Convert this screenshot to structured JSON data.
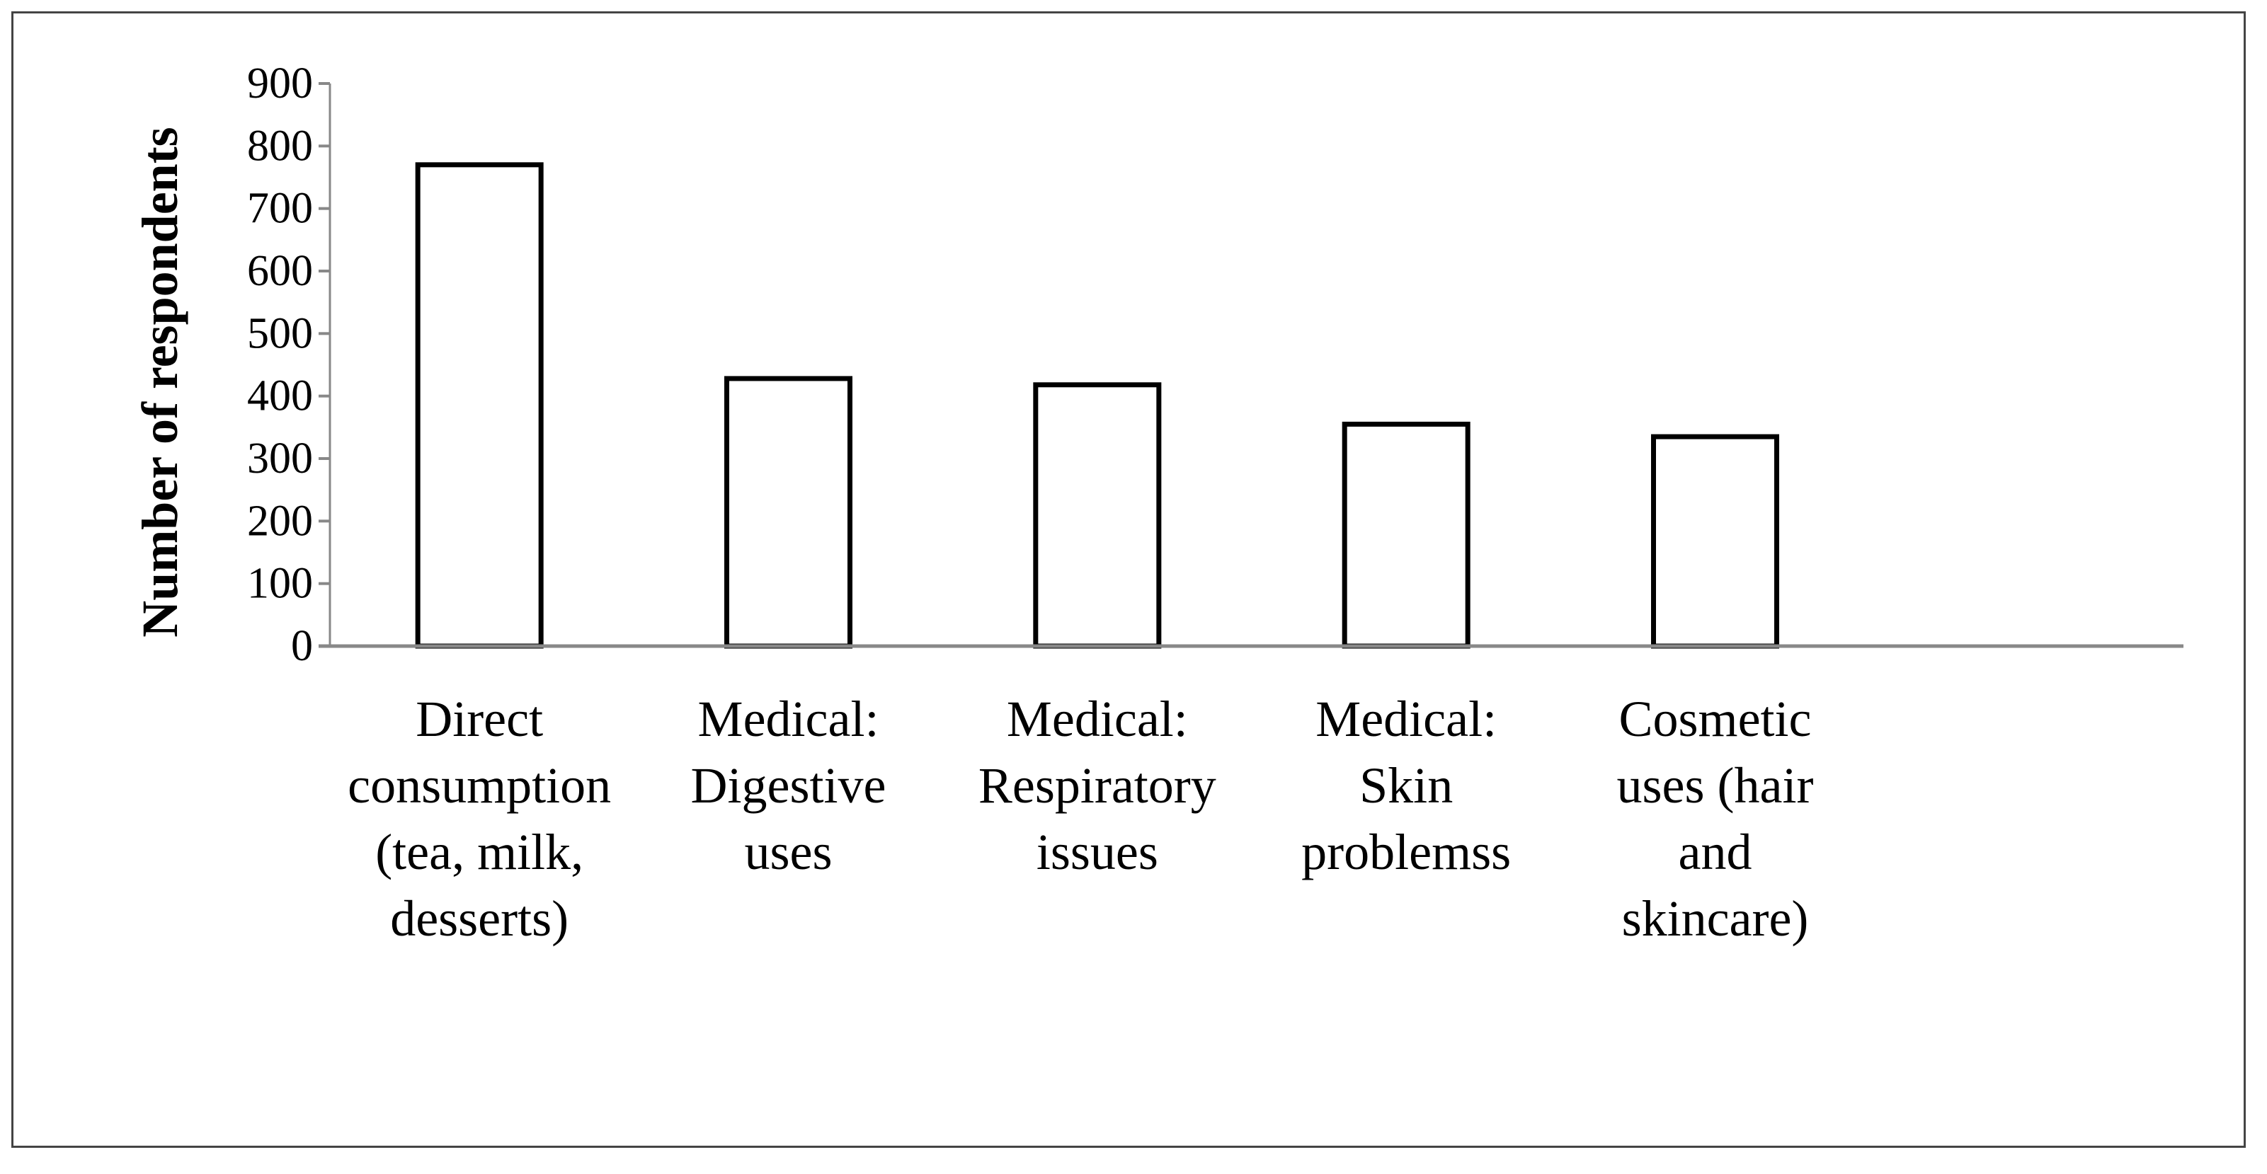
{
  "chart_data": {
    "type": "bar",
    "title": "",
    "xlabel": "",
    "ylabel": "Number of respondents",
    "ylim": [
      0,
      900
    ],
    "yticks": [
      0,
      100,
      200,
      300,
      400,
      500,
      600,
      700,
      800,
      900
    ],
    "grid": false,
    "legend": "none",
    "categories": [
      [
        "Direct",
        "consumption",
        "(tea, milk,",
        "desserts)"
      ],
      [
        "Medical:",
        "Digestive",
        "uses"
      ],
      [
        "Medical:",
        "Respiratory",
        "issues"
      ],
      [
        "Medical:",
        "Skin",
        "problemss"
      ],
      [
        "Cosmetic",
        "uses (hair",
        "and",
        "skincare)"
      ]
    ],
    "values": [
      770,
      428,
      418,
      355,
      335
    ],
    "colors": {
      "bar_fill": "#ffffff",
      "bar_stroke": "#000000",
      "axis": "#888888"
    }
  }
}
